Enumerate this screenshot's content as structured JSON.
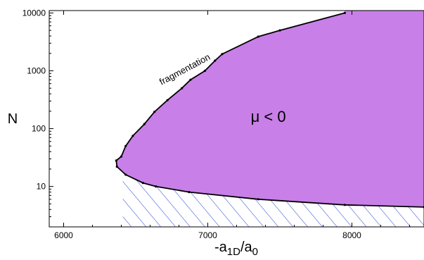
{
  "chart_data": {
    "type": "area",
    "xlabel": {
      "main": "-a",
      "sub1": "1D",
      "mid": "/a",
      "sub2": "0"
    },
    "ylabel": "N",
    "xlim": [
      5900,
      8500
    ],
    "ylim": [
      2,
      11000
    ],
    "y_scale": "log",
    "grid": false,
    "x_ticks": [
      6000,
      7000,
      8000
    ],
    "x_tick_labels": [
      "6000",
      "7000",
      "8000"
    ],
    "y_ticks": [
      10,
      100,
      1000,
      10000
    ],
    "y_tick_labels": [
      "10",
      "100",
      "1000",
      "10000"
    ],
    "series": [
      {
        "points": [
          [
            7950,
            10000
          ],
          [
            7500,
            5000
          ],
          [
            7350,
            3900
          ],
          [
            7100,
            1950
          ],
          [
            7050,
            1500
          ],
          [
            6980,
            1000
          ],
          [
            6880,
            700
          ],
          [
            6820,
            500
          ],
          [
            6720,
            310
          ],
          [
            6630,
            195
          ],
          [
            6560,
            120
          ],
          [
            6480,
            75
          ],
          [
            6430,
            50
          ],
          [
            6400,
            33
          ],
          [
            6365,
            28
          ],
          [
            6370,
            22
          ],
          [
            6430,
            16
          ],
          [
            6550,
            11.5
          ],
          [
            6640,
            10
          ],
          [
            6870,
            8
          ],
          [
            7350,
            6
          ],
          [
            7950,
            4.8
          ],
          [
            8500,
            4.4
          ]
        ]
      }
    ],
    "region_colors": {
      "mu_negative": "#c87fe8",
      "hatched": "#1f3fd6",
      "boundary": "#000000"
    },
    "annotations": [
      {
        "text": "fragmentation",
        "x": 6850,
        "y": 950,
        "angle_deg": -28
      },
      {
        "text": "μ < 0",
        "x": 7420,
        "y": 130
      }
    ]
  }
}
